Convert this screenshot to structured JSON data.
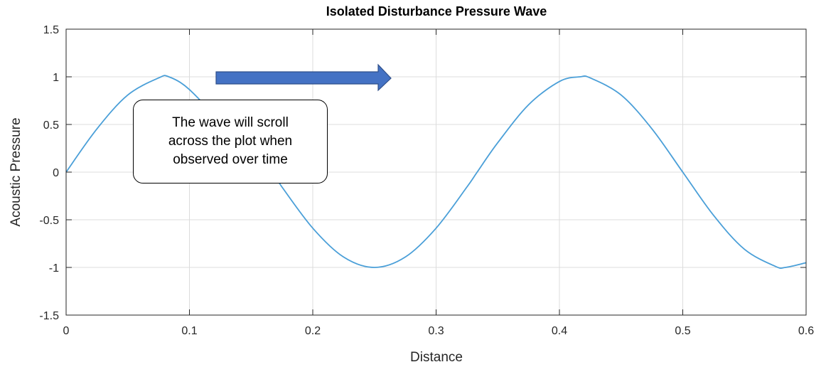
{
  "chart_data": {
    "type": "line",
    "title": "Isolated Disturbance Pressure Wave",
    "xlabel": "Distance",
    "ylabel": "Acoustic Pressure",
    "xlim": [
      0,
      0.6
    ],
    "ylim": [
      -1.5,
      1.5
    ],
    "xticks": [
      "0",
      "0.1",
      "0.2",
      "0.3",
      "0.4",
      "0.5",
      "0.6"
    ],
    "yticks": [
      "-1.5",
      "-1",
      "-0.5",
      "0",
      "0.5",
      "1",
      "1.5"
    ],
    "grid": true,
    "series": [
      {
        "color": "#4a9fd8",
        "x": [
          0,
          0.025,
          0.05,
          0.075,
          0.0833,
          0.1,
          0.125,
          0.15,
          0.1667,
          0.175,
          0.2,
          0.225,
          0.25,
          0.275,
          0.3,
          0.325,
          0.3333,
          0.35,
          0.375,
          0.4,
          0.4167,
          0.425,
          0.45,
          0.475,
          0.5,
          0.525,
          0.55,
          0.575,
          0.5833,
          0.6
        ],
        "y": [
          0,
          0.454,
          0.809,
          0.988,
          1.0,
          0.866,
          0.5,
          0.0,
          -0.0,
          -0.156,
          -0.588,
          -0.891,
          -1.0,
          -0.891,
          -0.588,
          -0.156,
          0.0,
          0.309,
          0.707,
          0.951,
          1.0,
          0.988,
          0.809,
          0.454,
          0.0,
          -0.454,
          -0.809,
          -0.988,
          -1.0,
          -0.951
        ]
      }
    ],
    "annotation": {
      "text": "The wave will scroll\nacross the plot when\nobserved over time",
      "arrow_direction": "right",
      "arrow_color": "#4472c4"
    }
  }
}
